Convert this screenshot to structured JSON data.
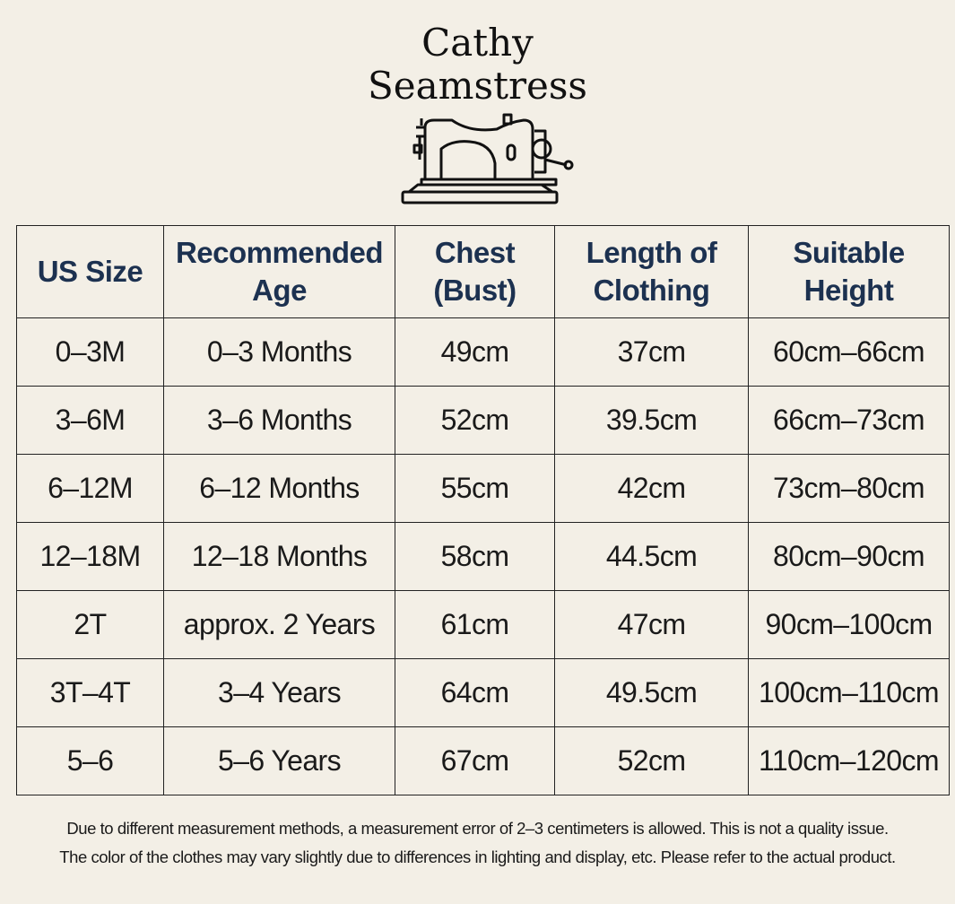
{
  "header": {
    "title_lines": [
      "Cathy",
      "Seamstress"
    ]
  },
  "table": {
    "columns": [
      [
        "US Size"
      ],
      [
        "Recommended",
        "Age"
      ],
      [
        "Chest",
        "(Bust)"
      ],
      [
        "Length of",
        "Clothing"
      ],
      [
        "Suitable",
        "Height"
      ]
    ],
    "rows": [
      [
        "0–3M",
        "0–3 Months",
        "49cm",
        "37cm",
        "60cm–66cm"
      ],
      [
        "3–6M",
        "3–6 Months",
        "52cm",
        "39.5cm",
        "66cm–73cm"
      ],
      [
        "6–12M",
        "6–12 Months",
        "55cm",
        "42cm",
        "73cm–80cm"
      ],
      [
        "12–18M",
        "12–18 Months",
        "58cm",
        "44.5cm",
        "80cm–90cm"
      ],
      [
        "2T",
        "approx. 2 Years",
        "61cm",
        "47cm",
        "90cm–100cm"
      ],
      [
        "3T–4T",
        "3–4 Years",
        "64cm",
        "49.5cm",
        "100cm–110cm"
      ],
      [
        "5–6",
        "5–6 Years",
        "67cm",
        "52cm",
        "110cm–120cm"
      ]
    ]
  },
  "footer": {
    "notes": [
      "Due to different measurement methods, a measurement error of 2–3 centimeters is allowed. This is not a quality issue.",
      "The color of the clothes may vary slightly due to differences in lighting and display, etc. Please refer to the actual product."
    ]
  }
}
